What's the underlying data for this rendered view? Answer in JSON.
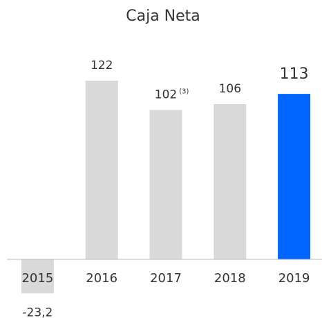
{
  "chart_data": {
    "type": "bar",
    "title": "Caja Neta",
    "categories": [
      "2015",
      "2016",
      "2017",
      "2018",
      "2019"
    ],
    "values": [
      -23.2,
      122,
      102,
      106,
      113
    ],
    "value_labels": [
      "-23,2",
      "122",
      "102",
      "106",
      "113"
    ],
    "footnote_marks": [
      null,
      null,
      "(3)",
      null,
      null
    ],
    "colors": [
      "#d9d9d9",
      "#d9d9d9",
      "#d9d9d9",
      "#d9d9d9",
      "#0066ff"
    ]
  }
}
